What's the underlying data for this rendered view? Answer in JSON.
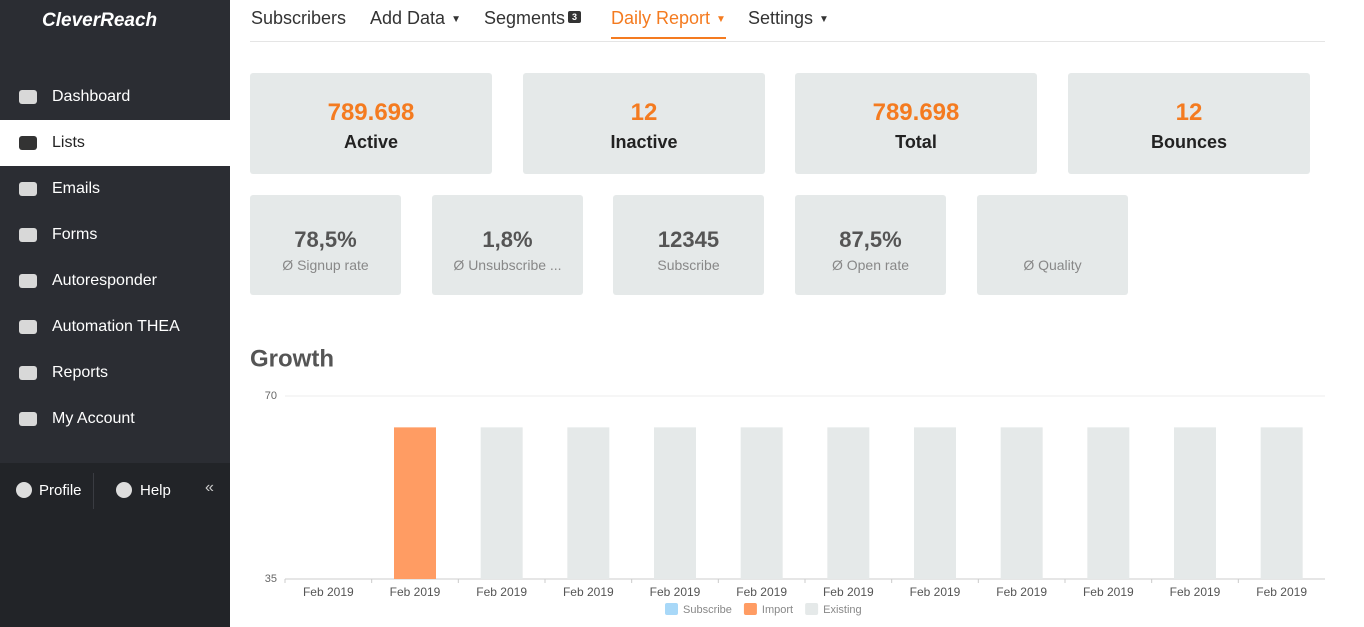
{
  "brand": "CleverReach",
  "sidebar": {
    "items": [
      "Dashboard",
      "Lists",
      "Emails",
      "Forms",
      "Autoresponder",
      "Automation THEA",
      "Reports",
      "My Account"
    ],
    "active": 1,
    "footer": [
      "Profile",
      "Help"
    ]
  },
  "nav": [
    {
      "label": "Subscribers"
    },
    {
      "label": "Add Data"
    },
    {
      "label": "Segments",
      "badge": 3
    },
    {
      "label": "Daily Report"
    },
    {
      "label": "Settings"
    }
  ],
  "nav_active": 3,
  "stats": [
    {
      "value": "789.698",
      "label": "Active"
    },
    {
      "value": 12,
      "label": "Inactive"
    },
    {
      "value": "789.698",
      "label": "Total"
    },
    {
      "value": 12,
      "label": "Bounces"
    }
  ],
  "metrics": [
    {
      "value": "78,5%",
      "label": "Ø Signup rate"
    },
    {
      "value": "1,8%",
      "label": "Ø Unsubscribe ..."
    },
    {
      "value": 12345,
      "label": "Subscribe"
    },
    {
      "value": "87,5%",
      "label": "Ø Open rate"
    },
    {
      "label": "Ø Quality"
    }
  ],
  "chart_data": {
    "type": "bar",
    "title": "Growth",
    "stacked": true,
    "categories": [
      "Feb 2019",
      "Feb 2019",
      "Feb 2019",
      "Feb 2019",
      "Feb 2019",
      "Feb 2019",
      "Feb 2019",
      "Feb 2019",
      "Feb 2019",
      "Feb 2019",
      "Feb 2019",
      "Feb 2019"
    ],
    "series": [
      {
        "name": "Subscribe",
        "color": "#a8d8f8",
        "values": [
          null,
          null,
          null,
          null,
          null,
          null,
          null,
          null,
          null,
          null,
          null,
          null
        ]
      },
      {
        "name": "Import",
        "color": "#ff9c63",
        "values": [
          null,
          64,
          null,
          null,
          null,
          null,
          null,
          null,
          null,
          null,
          null,
          null
        ]
      },
      {
        "name": "Existing",
        "color": "#e5e9e9",
        "values": [
          null,
          null,
          64,
          64,
          64,
          64,
          64,
          64,
          64,
          64,
          64,
          64
        ]
      }
    ],
    "ylim": [
      35,
      70
    ],
    "yticks": [
      35,
      70
    ],
    "grid": true
  }
}
